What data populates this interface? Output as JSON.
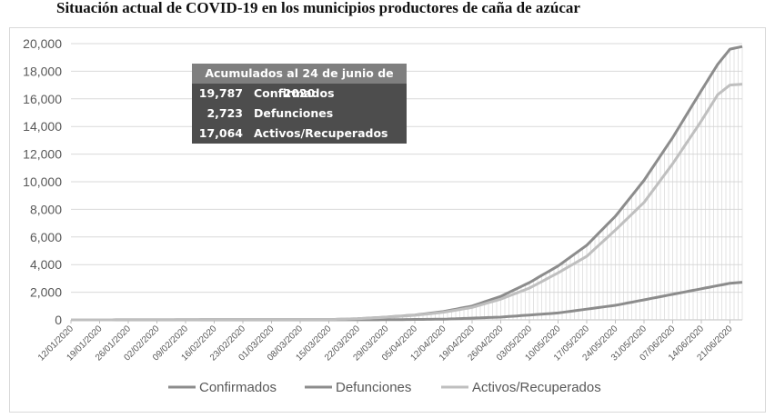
{
  "title": "Situación actual de COVID-19 en los municipios productores de caña de azúcar",
  "info_box": {
    "header": "Acumulados al 24 de junio de 2020",
    "rows": [
      {
        "value": "19,787",
        "label": "Confirmados"
      },
      {
        "value": "2,723",
        "label": "Defunciones"
      },
      {
        "value": "17,064",
        "label": "Activos/Recuperados"
      }
    ]
  },
  "colors": {
    "confirmados": "#8c8c8c",
    "defunciones": "#8c8c8c",
    "activos": "#bfbfbf",
    "gridline": "#d9d9d9",
    "vertical_drop_lines": "#d0d0d0",
    "info_box_bg": "#4d4d4d",
    "info_box_header": "#7f7f7f"
  },
  "chart_data": {
    "type": "line",
    "title": "Situación actual de COVID-19 en los municipios productores de caña de azúcar",
    "xlabel": "",
    "ylabel": "",
    "ylim": [
      0,
      20000
    ],
    "y_ticks": [
      "0",
      "2,000",
      "4,000",
      "6,000",
      "8,000",
      "10,000",
      "12,000",
      "14,000",
      "16,000",
      "18,000",
      "20,000"
    ],
    "grid": "horizontal",
    "legend_position": "bottom",
    "x_ticks": [
      "12/01/2020",
      "19/01/2020",
      "26/01/2020",
      "02/02/2020",
      "09/02/2020",
      "16/02/2020",
      "23/02/2020",
      "01/03/2020",
      "08/03/2020",
      "15/03/2020",
      "22/03/2020",
      "29/03/2020",
      "05/04/2020",
      "12/04/2020",
      "19/04/2020",
      "26/04/2020",
      "03/05/2020",
      "10/05/2020",
      "17/05/2020",
      "24/05/2020",
      "31/05/2020",
      "07/06/2020",
      "14/06/2020",
      "21/06/2020"
    ],
    "x_start": "12/01/2020",
    "x_end": "24/06/2020",
    "series": [
      {
        "name": "Confirmados",
        "dates": [
          "12/01/2020",
          "15/03/2020",
          "22/03/2020",
          "29/03/2020",
          "05/04/2020",
          "12/04/2020",
          "19/04/2020",
          "26/04/2020",
          "03/05/2020",
          "10/05/2020",
          "17/05/2020",
          "24/05/2020",
          "31/05/2020",
          "07/06/2020",
          "14/06/2020",
          "18/06/2020",
          "21/06/2020",
          "24/06/2020"
        ],
        "values": [
          0,
          20,
          80,
          200,
          350,
          600,
          1000,
          1700,
          2700,
          3900,
          5400,
          7500,
          10100,
          13200,
          16600,
          18500,
          19600,
          19787
        ]
      },
      {
        "name": "Defunciones",
        "dates": [
          "12/01/2020",
          "29/03/2020",
          "12/04/2020",
          "26/04/2020",
          "10/05/2020",
          "24/05/2020",
          "07/06/2020",
          "14/06/2020",
          "21/06/2020",
          "24/06/2020"
        ],
        "values": [
          0,
          10,
          50,
          200,
          500,
          1050,
          1850,
          2250,
          2650,
          2723
        ]
      },
      {
        "name": "Activos/Recuperados",
        "dates": [
          "12/01/2020",
          "15/03/2020",
          "22/03/2020",
          "29/03/2020",
          "05/04/2020",
          "12/04/2020",
          "19/04/2020",
          "26/04/2020",
          "03/05/2020",
          "10/05/2020",
          "17/05/2020",
          "24/05/2020",
          "31/05/2020",
          "07/06/2020",
          "14/06/2020",
          "18/06/2020",
          "21/06/2020",
          "24/06/2020"
        ],
        "values": [
          0,
          20,
          80,
          190,
          330,
          550,
          900,
          1500,
          2300,
          3400,
          4600,
          6500,
          8500,
          11300,
          14400,
          16300,
          17000,
          17064
        ]
      }
    ]
  }
}
